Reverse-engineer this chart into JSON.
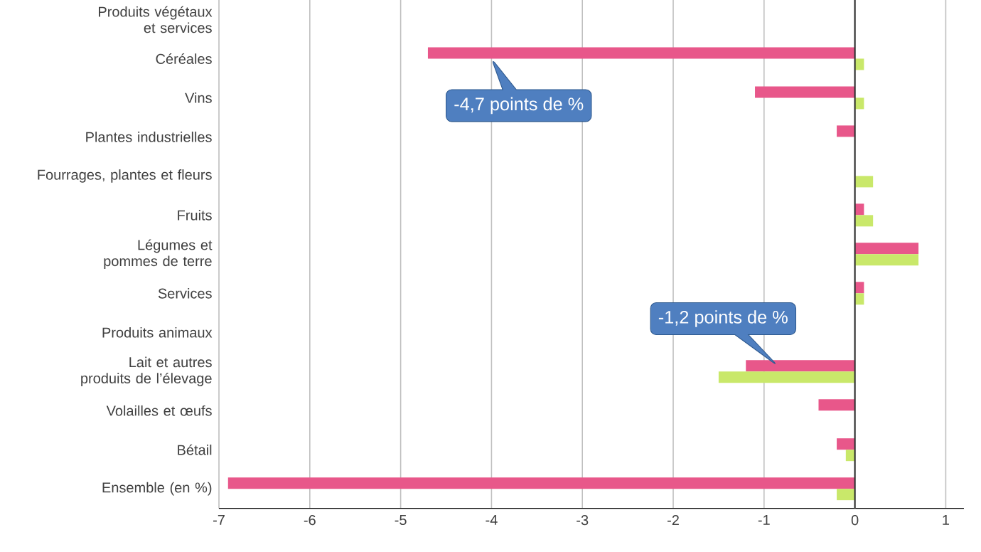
{
  "chart_data": {
    "type": "bar",
    "orientation": "horizontal",
    "categories": [
      "Produits végétaux et services",
      "Céréales",
      "Vins",
      "Plantes industrielles",
      "Fourrages, plantes et fleurs",
      "Fruits",
      "Légumes et pommes de terre",
      "Services",
      "Produits animaux",
      "Lait et autres produits de l’élevage",
      "Volailles et œufs",
      "Bétail",
      "Ensemble (en %)"
    ],
    "series": [
      {
        "color": "#e8578a",
        "values": [
          null,
          -4.7,
          -1.1,
          -0.2,
          null,
          0.1,
          0.7,
          0.1,
          null,
          -1.2,
          -0.4,
          -0.2,
          -6.9
        ]
      },
      {
        "color": "#c9e86a",
        "values": [
          null,
          0.1,
          0.1,
          null,
          0.2,
          0.2,
          0.7,
          0.1,
          null,
          -1.5,
          null,
          -0.1,
          -0.2
        ]
      }
    ],
    "xlim": [
      -7,
      1.2
    ],
    "xticks": [
      -7,
      -6,
      -5,
      -4,
      -3,
      -2,
      -1,
      0,
      1
    ],
    "grid": "x",
    "annotations": [
      {
        "text": "-4,7 points de %",
        "x": -4,
        "y": "Céréales"
      },
      {
        "text": "-1,2 points de %",
        "x": -0.85,
        "y": "Lait et autres produits de l’élevage"
      }
    ]
  }
}
